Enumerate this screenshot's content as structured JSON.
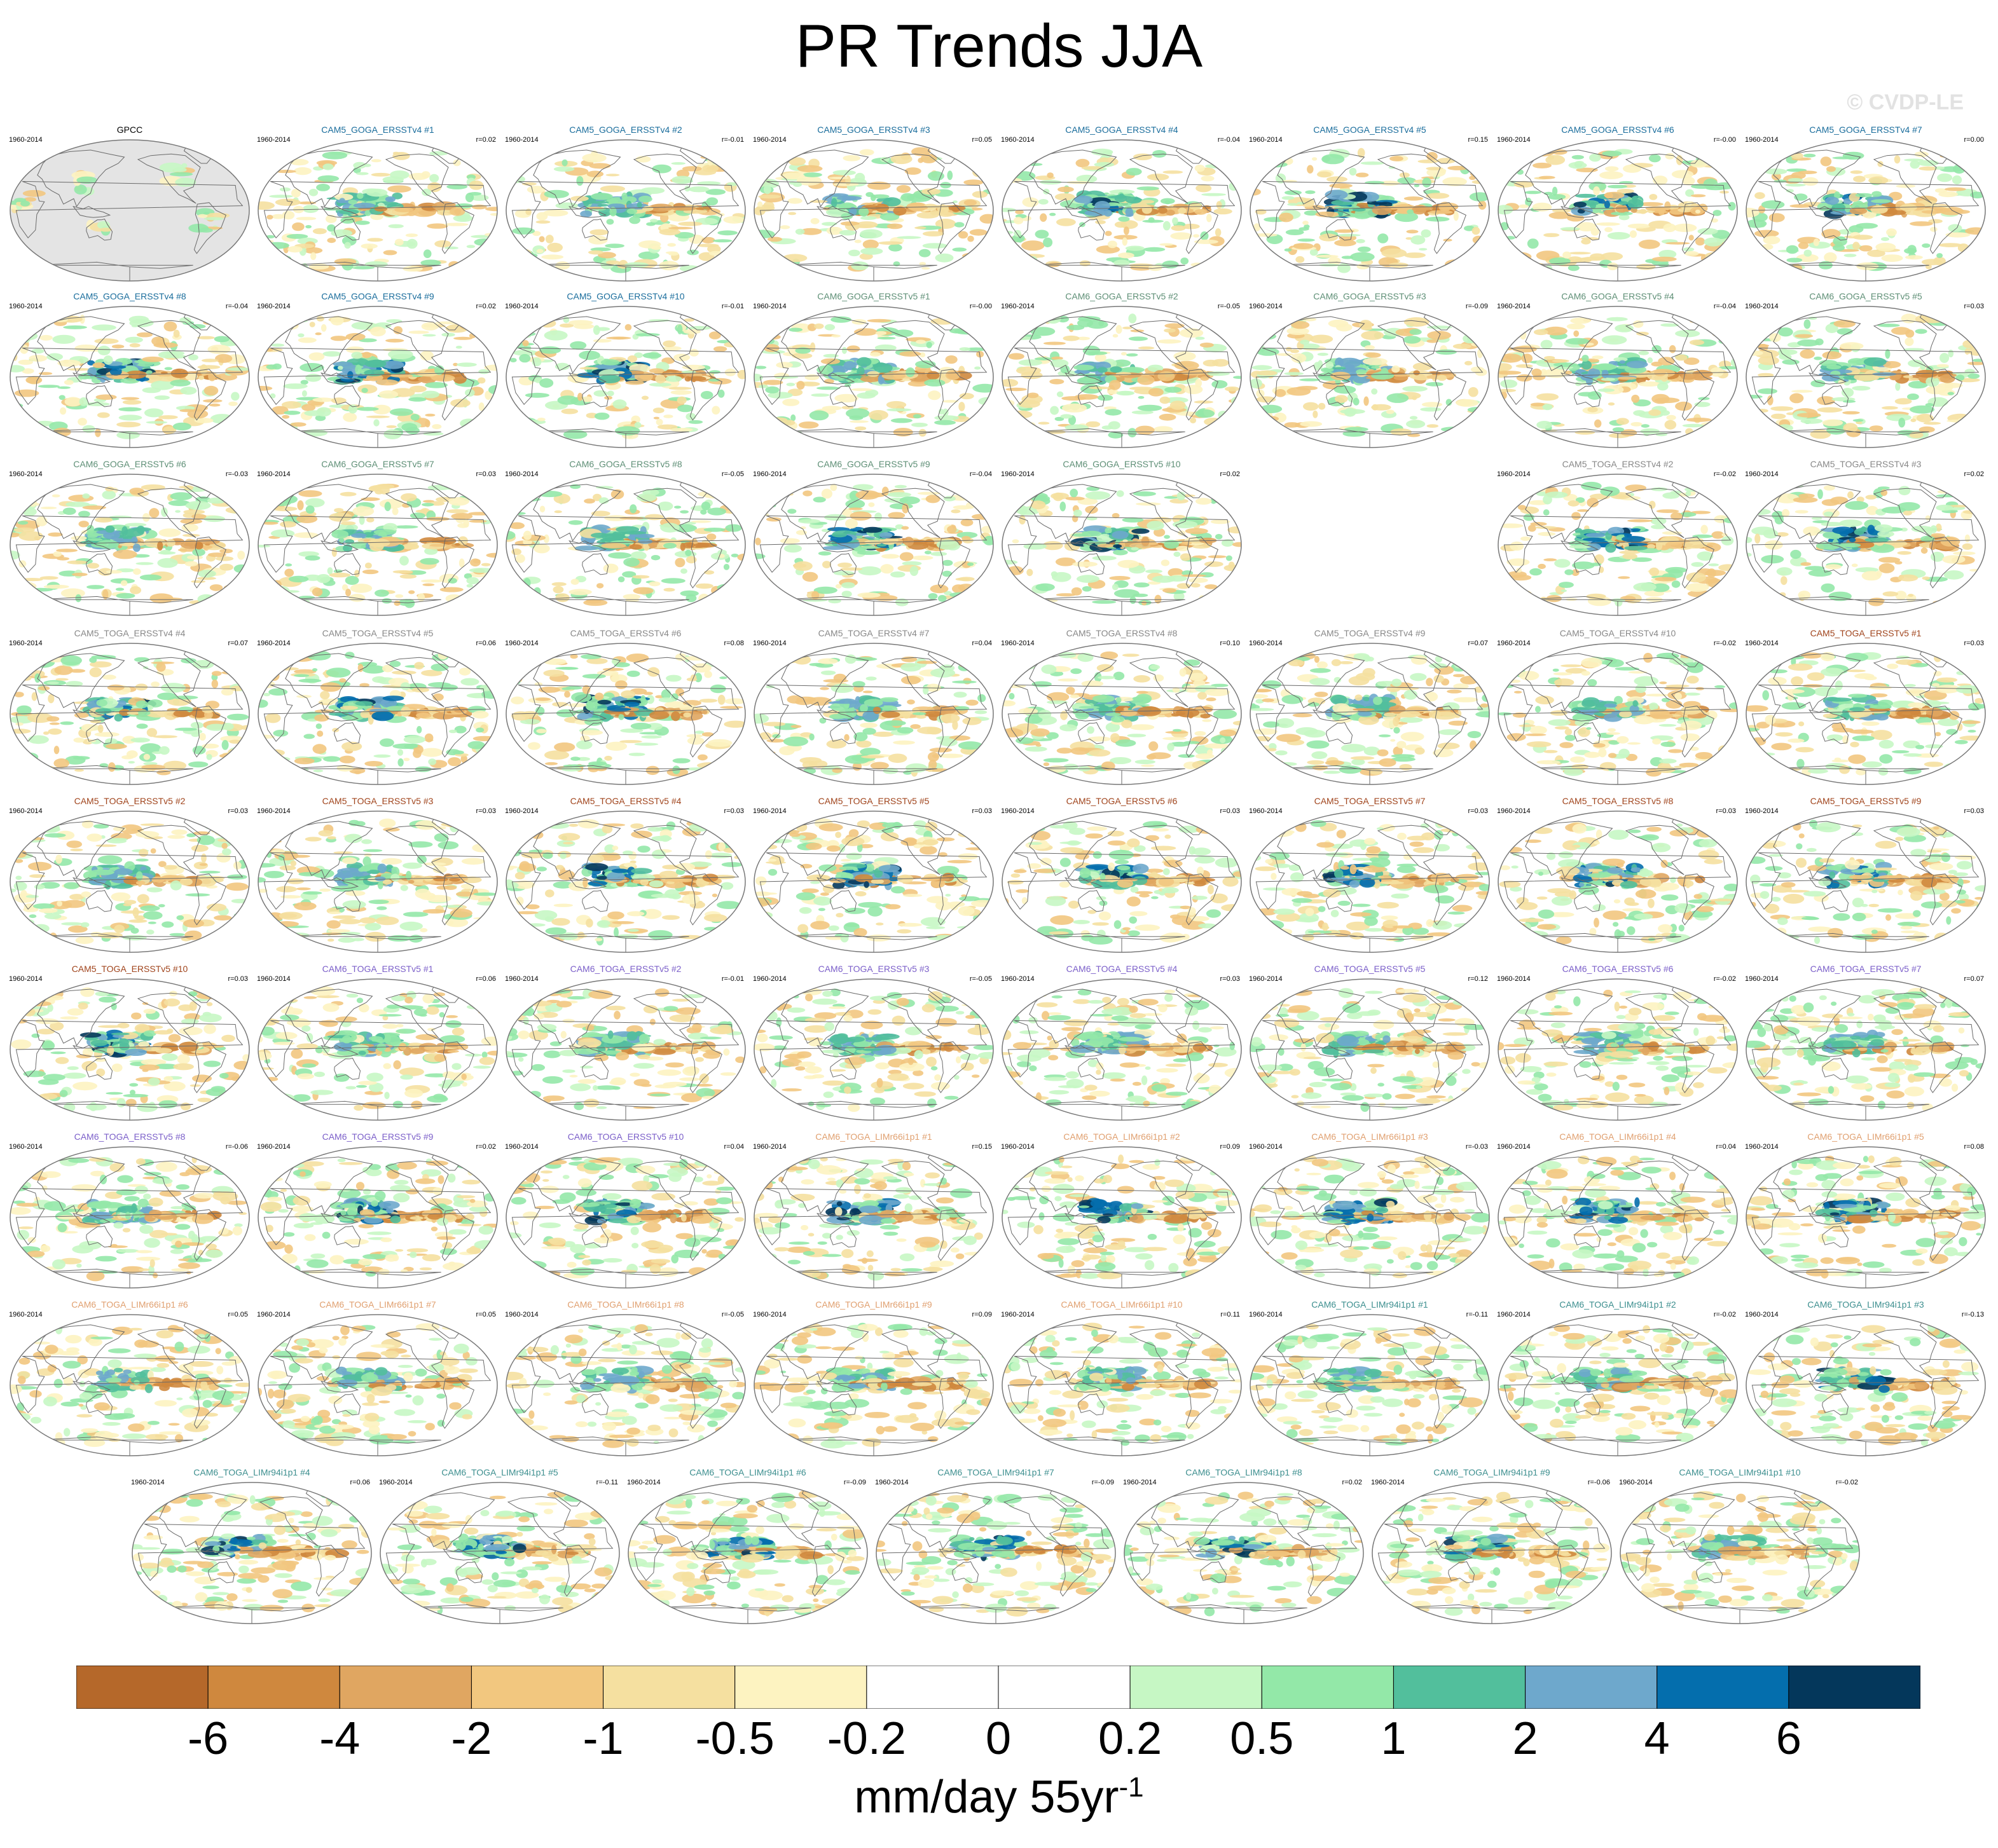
{
  "title": "PR Trends JJA",
  "watermark": "© CVDP-LE",
  "years": "1960-2014",
  "colorbar": {
    "colors": [
      "#b5682a",
      "#cf883e",
      "#e0a661",
      "#f2c77f",
      "#f5e0a0",
      "#fdf3c1",
      "#ffffff",
      "#ffffff",
      "#c6f7c4",
      "#93e8a8",
      "#52bf9c",
      "#6ea8cc",
      "#046ead",
      "#04375b"
    ],
    "labels": [
      "-6",
      "-4",
      "-2",
      "-1",
      "-0.5",
      "-0.2",
      "0",
      "0.2",
      "0.5",
      "1",
      "2",
      "4",
      "6"
    ],
    "units": "mm/day 55yr",
    "units_exp": "-1"
  },
  "panels": [
    {
      "title": "GPCC",
      "corr": "",
      "color": "#000000",
      "obs": true
    },
    {
      "title": "CAM5_GOGA_ERSSTv4 #1",
      "corr": "r=0.02",
      "color": "#1a6d9c"
    },
    {
      "title": "CAM5_GOGA_ERSSTv4 #2",
      "corr": "r=-0.01",
      "color": "#1a6d9c"
    },
    {
      "title": "CAM5_GOGA_ERSSTv4 #3",
      "corr": "r=0.05",
      "color": "#1a6d9c"
    },
    {
      "title": "CAM5_GOGA_ERSSTv4 #4",
      "corr": "r=-0.04",
      "color": "#1a6d9c"
    },
    {
      "title": "CAM5_GOGA_ERSSTv4 #5",
      "corr": "r=0.15",
      "color": "#1a6d9c"
    },
    {
      "title": "CAM5_GOGA_ERSSTv4 #6",
      "corr": "r=-0.00",
      "color": "#1a6d9c"
    },
    {
      "title": "CAM5_GOGA_ERSSTv4 #7",
      "corr": "r=0.00",
      "color": "#1a6d9c"
    },
    {
      "title": "CAM5_GOGA_ERSSTv4 #8",
      "corr": "r=-0.04",
      "color": "#1a6d9c"
    },
    {
      "title": "CAM5_GOGA_ERSSTv4 #9",
      "corr": "r=0.02",
      "color": "#1a6d9c"
    },
    {
      "title": "CAM5_GOGA_ERSSTv4 #10",
      "corr": "r=-0.01",
      "color": "#1a6d9c"
    },
    {
      "title": "CAM6_GOGA_ERSSTv5 #1",
      "corr": "r=-0.00",
      "color": "#5e8f76"
    },
    {
      "title": "CAM6_GOGA_ERSSTv5 #2",
      "corr": "r=-0.05",
      "color": "#5e8f76"
    },
    {
      "title": "CAM6_GOGA_ERSSTv5 #3",
      "corr": "r=-0.09",
      "color": "#5e8f76"
    },
    {
      "title": "CAM6_GOGA_ERSSTv5 #4",
      "corr": "r=-0.04",
      "color": "#5e8f76"
    },
    {
      "title": "CAM6_GOGA_ERSSTv5 #5",
      "corr": "r=0.03",
      "color": "#5e8f76"
    },
    {
      "title": "CAM6_GOGA_ERSSTv5 #6",
      "corr": "r=-0.03",
      "color": "#5e8f76"
    },
    {
      "title": "CAM6_GOGA_ERSSTv5 #7",
      "corr": "r=0.03",
      "color": "#5e8f76"
    },
    {
      "title": "CAM6_GOGA_ERSSTv5 #8",
      "corr": "r=-0.05",
      "color": "#5e8f76"
    },
    {
      "title": "CAM6_GOGA_ERSSTv5 #9",
      "corr": "r=-0.04",
      "color": "#5e8f76"
    },
    {
      "title": "CAM6_GOGA_ERSSTv5 #10",
      "corr": "r=0.02",
      "color": "#5e8f76"
    },
    {
      "title": "CAM5_TOGA_ERSSTv4 #2",
      "corr": "r=-0.02",
      "color": "#888888"
    },
    {
      "title": "CAM5_TOGA_ERSSTv4 #3",
      "corr": "r=0.02",
      "color": "#888888"
    },
    {
      "title": "CAM5_TOGA_ERSSTv4 #4",
      "corr": "r=0.07",
      "color": "#888888"
    },
    {
      "title": "CAM5_TOGA_ERSSTv4 #5",
      "corr": "r=0.06",
      "color": "#888888"
    },
    {
      "title": "CAM5_TOGA_ERSSTv4 #6",
      "corr": "r=0.08",
      "color": "#888888"
    },
    {
      "title": "CAM5_TOGA_ERSSTv4 #7",
      "corr": "r=0.04",
      "color": "#888888"
    },
    {
      "title": "CAM5_TOGA_ERSSTv4 #8",
      "corr": "r=0.10",
      "color": "#888888"
    },
    {
      "title": "CAM5_TOGA_ERSSTv4 #9",
      "corr": "r=0.07",
      "color": "#888888"
    },
    {
      "title": "CAM5_TOGA_ERSSTv4 #10",
      "corr": "r=-0.02",
      "color": "#888888"
    },
    {
      "title": "CAM5_TOGA_ERSSTv5 #1",
      "corr": "r=0.03",
      "color": "#a0441c"
    },
    {
      "title": "CAM5_TOGA_ERSSTv5 #2",
      "corr": "r=0.03",
      "color": "#a0441c"
    },
    {
      "title": "CAM5_TOGA_ERSSTv5 #3",
      "corr": "r=0.03",
      "color": "#a0441c"
    },
    {
      "title": "CAM5_TOGA_ERSSTv5 #4",
      "corr": "r=0.03",
      "color": "#a0441c"
    },
    {
      "title": "CAM5_TOGA_ERSSTv5 #5",
      "corr": "r=0.03",
      "color": "#a0441c"
    },
    {
      "title": "CAM5_TOGA_ERSSTv5 #6",
      "corr": "r=0.03",
      "color": "#a0441c"
    },
    {
      "title": "CAM5_TOGA_ERSSTv5 #7",
      "corr": "r=0.03",
      "color": "#a0441c"
    },
    {
      "title": "CAM5_TOGA_ERSSTv5 #8",
      "corr": "r=0.03",
      "color": "#a0441c"
    },
    {
      "title": "CAM5_TOGA_ERSSTv5 #9",
      "corr": "r=0.03",
      "color": "#a0441c"
    },
    {
      "title": "CAM5_TOGA_ERSSTv5 #10",
      "corr": "r=0.03",
      "color": "#a0441c"
    },
    {
      "title": "CAM6_TOGA_ERSSTv5 #1",
      "corr": "r=0.06",
      "color": "#7b5fc9"
    },
    {
      "title": "CAM6_TOGA_ERSSTv5 #2",
      "corr": "r=-0.01",
      "color": "#7b5fc9"
    },
    {
      "title": "CAM6_TOGA_ERSSTv5 #3",
      "corr": "r=-0.05",
      "color": "#7b5fc9"
    },
    {
      "title": "CAM6_TOGA_ERSSTv5 #4",
      "corr": "r=0.03",
      "color": "#7b5fc9"
    },
    {
      "title": "CAM6_TOGA_ERSSTv5 #5",
      "corr": "r=0.12",
      "color": "#7b5fc9"
    },
    {
      "title": "CAM6_TOGA_ERSSTv5 #6",
      "corr": "r=-0.02",
      "color": "#7b5fc9"
    },
    {
      "title": "CAM6_TOGA_ERSSTv5 #7",
      "corr": "r=0.07",
      "color": "#7b5fc9"
    },
    {
      "title": "CAM6_TOGA_ERSSTv5 #8",
      "corr": "r=-0.06",
      "color": "#7b5fc9"
    },
    {
      "title": "CAM6_TOGA_ERSSTv5 #9",
      "corr": "r=0.02",
      "color": "#7b5fc9"
    },
    {
      "title": "CAM6_TOGA_ERSSTv5 #10",
      "corr": "r=0.04",
      "color": "#7b5fc9"
    },
    {
      "title": "CAM6_TOGA_LIMr66i1p1 #1",
      "corr": "r=0.15",
      "color": "#e0a070"
    },
    {
      "title": "CAM6_TOGA_LIMr66i1p1 #2",
      "corr": "r=0.09",
      "color": "#e0a070"
    },
    {
      "title": "CAM6_TOGA_LIMr66i1p1 #3",
      "corr": "r=-0.03",
      "color": "#e0a070"
    },
    {
      "title": "CAM6_TOGA_LIMr66i1p1 #4",
      "corr": "r=0.04",
      "color": "#e0a070"
    },
    {
      "title": "CAM6_TOGA_LIMr66i1p1 #5",
      "corr": "r=0.08",
      "color": "#e0a070"
    },
    {
      "title": "CAM6_TOGA_LIMr66i1p1 #6",
      "corr": "r=0.05",
      "color": "#e0a070"
    },
    {
      "title": "CAM6_TOGA_LIMr66i1p1 #7",
      "corr": "r=0.05",
      "color": "#e0a070"
    },
    {
      "title": "CAM6_TOGA_LIMr66i1p1 #8",
      "corr": "r=-0.05",
      "color": "#e0a070"
    },
    {
      "title": "CAM6_TOGA_LIMr66i1p1 #9",
      "corr": "r=0.09",
      "color": "#e0a070"
    },
    {
      "title": "CAM6_TOGA_LIMr66i1p1 #10",
      "corr": "r=0.11",
      "color": "#e0a070"
    },
    {
      "title": "CAM6_TOGA_LIMr94i1p1 #1",
      "corr": "r=-0.11",
      "color": "#3d8f8f"
    },
    {
      "title": "CAM6_TOGA_LIMr94i1p1 #2",
      "corr": "r=-0.02",
      "color": "#3d8f8f"
    },
    {
      "title": "CAM6_TOGA_LIMr94i1p1 #3",
      "corr": "r=-0.13",
      "color": "#3d8f8f"
    },
    {
      "title": "CAM6_TOGA_LIMr94i1p1 #4",
      "corr": "r=0.06",
      "color": "#3d8f8f"
    },
    {
      "title": "CAM6_TOGA_LIMr94i1p1 #5",
      "corr": "r=-0.11",
      "color": "#3d8f8f"
    },
    {
      "title": "CAM6_TOGA_LIMr94i1p1 #6",
      "corr": "r=-0.09",
      "color": "#3d8f8f"
    },
    {
      "title": "CAM6_TOGA_LIMr94i1p1 #7",
      "corr": "r=-0.09",
      "color": "#3d8f8f"
    },
    {
      "title": "CAM6_TOGA_LIMr94i1p1 #8",
      "corr": "r=0.02",
      "color": "#3d8f8f"
    },
    {
      "title": "CAM6_TOGA_LIMr94i1p1 #9",
      "corr": "r=-0.06",
      "color": "#3d8f8f"
    },
    {
      "title": "CAM6_TOGA_LIMr94i1p1 #10",
      "corr": "r=-0.02",
      "color": "#3d8f8f"
    }
  ]
}
